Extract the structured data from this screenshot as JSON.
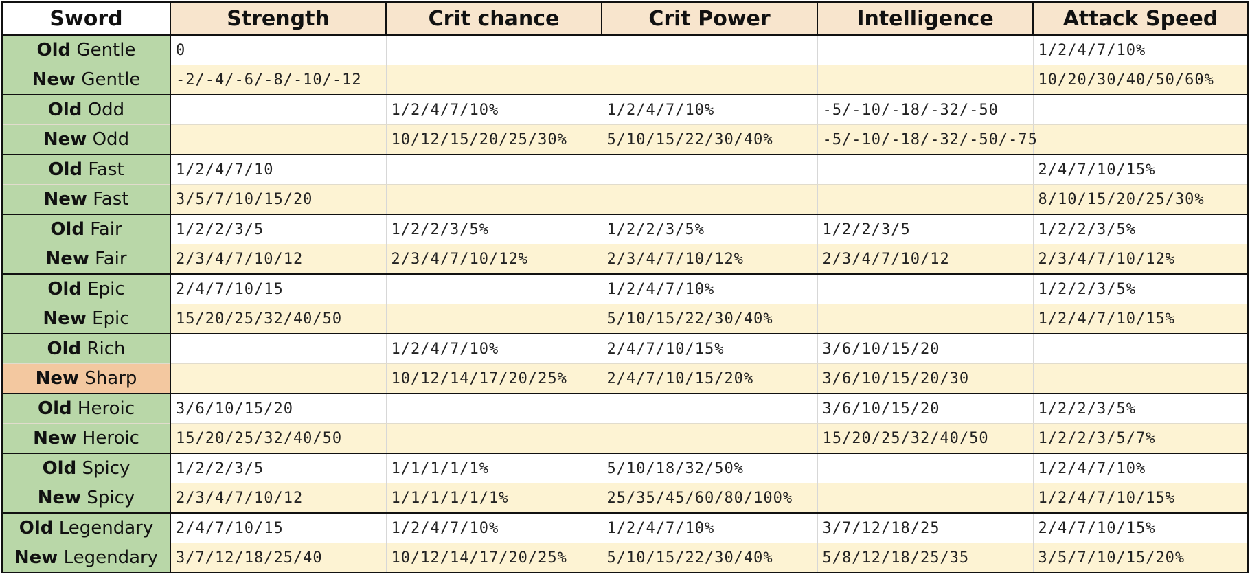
{
  "headers": [
    "Sword",
    "Strength",
    "Crit chance",
    "Crit Power",
    "Intelligence",
    "Attack Speed"
  ],
  "rows": [
    {
      "prefix": "Old",
      "name": "Gentle",
      "cells": [
        "0",
        "",
        "",
        "",
        "1/2/4/7/10%"
      ]
    },
    {
      "prefix": "New",
      "name": "Gentle",
      "cells": [
        "-2/-4/-6/-8/-10/-12",
        "",
        "",
        "",
        "10/20/30/40/50/60%"
      ]
    },
    {
      "prefix": "Old",
      "name": "Odd",
      "cells": [
        "",
        "1/2/4/7/10%",
        "1/2/4/7/10%",
        "-5/-10/-18/-32/-50",
        ""
      ]
    },
    {
      "prefix": "New",
      "name": "Odd",
      "cells": [
        "",
        "10/12/15/20/25/30%",
        "5/10/15/22/30/40%",
        "-5/-10/-18/-32/-50/-75",
        ""
      ]
    },
    {
      "prefix": "Old",
      "name": "Fast",
      "cells": [
        "1/2/4/7/10",
        "",
        "",
        "",
        "2/4/7/10/15%"
      ]
    },
    {
      "prefix": "New",
      "name": "Fast",
      "cells": [
        "3/5/7/10/15/20",
        "",
        "",
        "",
        "8/10/15/20/25/30%"
      ]
    },
    {
      "prefix": "Old",
      "name": "Fair",
      "cells": [
        "1/2/2/3/5",
        "1/2/2/3/5%",
        "1/2/2/3/5%",
        "1/2/2/3/5",
        "1/2/2/3/5%"
      ]
    },
    {
      "prefix": "New",
      "name": "Fair",
      "cells": [
        "2/3/4/7/10/12",
        "2/3/4/7/10/12%",
        "2/3/4/7/10/12%",
        "2/3/4/7/10/12",
        "2/3/4/7/10/12%"
      ]
    },
    {
      "prefix": "Old",
      "name": "Epic",
      "cells": [
        "2/4/7/10/15",
        "",
        "1/2/4/7/10%",
        "",
        "1/2/2/3/5%"
      ]
    },
    {
      "prefix": "New",
      "name": "Epic",
      "cells": [
        "15/20/25/32/40/50",
        "",
        "5/10/15/22/30/40%",
        "",
        "1/2/4/7/10/15%"
      ]
    },
    {
      "prefix": "Old",
      "name": "Rich",
      "cells": [
        "",
        "1/2/4/7/10%",
        "2/4/7/10/15%",
        "3/6/10/15/20",
        ""
      ]
    },
    {
      "prefix": "New",
      "name": "Sharp",
      "highlight": "#f3c8a0",
      "cells": [
        "",
        "10/12/14/17/20/25%",
        "2/4/7/10/15/20%",
        "3/6/10/15/20/30",
        ""
      ]
    },
    {
      "prefix": "Old",
      "name": "Heroic",
      "cells": [
        "3/6/10/15/20",
        "",
        "",
        "3/6/10/15/20",
        "1/2/2/3/5%"
      ]
    },
    {
      "prefix": "New",
      "name": "Heroic",
      "cells": [
        "15/20/25/32/40/50",
        "",
        "",
        "15/20/25/32/40/50",
        "1/2/2/3/5/7%"
      ]
    },
    {
      "prefix": "Old",
      "name": "Spicy",
      "cells": [
        "1/2/2/3/5",
        "1/1/1/1/1%",
        "5/10/18/32/50%",
        "",
        "1/2/4/7/10%"
      ]
    },
    {
      "prefix": "New",
      "name": "Spicy",
      "cells": [
        "2/3/4/7/10/12",
        "1/1/1/1/1/1%",
        "25/35/45/60/80/100%",
        "",
        "1/2/4/7/10/15%"
      ]
    },
    {
      "prefix": "Old",
      "name": "Legendary",
      "cells": [
        "2/4/7/10/15",
        "1/2/4/7/10%",
        "1/2/4/7/10%",
        "3/7/12/18/25",
        "2/4/7/10/15%"
      ]
    },
    {
      "prefix": "New",
      "name": "Legendary",
      "cells": [
        "3/7/12/18/25/40",
        "10/12/14/17/20/25%",
        "5/10/15/22/30/40%",
        "5/8/12/18/25/35",
        "3/5/7/10/15/20%"
      ]
    }
  ],
  "colors": {
    "header_bg": "#f8e5cd",
    "name_bg": "#b9d7a8",
    "name_highlight_bg": "#f3c8a0",
    "old_row_bg": "#ffffff",
    "new_row_bg": "#fdf3d3"
  }
}
